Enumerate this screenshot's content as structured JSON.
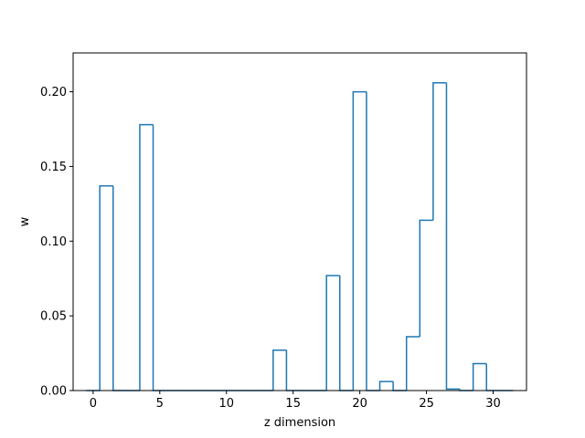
{
  "chart_data": {
    "type": "bar",
    "style": "step-outline",
    "xlabel": "z dimension",
    "ylabel": "w",
    "xlim": [
      -1.5,
      32.5
    ],
    "ylim": [
      0.0,
      0.226
    ],
    "xticks": [
      0,
      5,
      10,
      15,
      20,
      25,
      30
    ],
    "xtick_labels": [
      "0",
      "5",
      "10",
      "15",
      "20",
      "25",
      "30"
    ],
    "yticks": [
      0.0,
      0.05,
      0.1,
      0.15,
      0.2
    ],
    "ytick_labels": [
      "0.00",
      "0.05",
      "0.10",
      "0.15",
      "0.20"
    ],
    "grid": false,
    "legend": "none",
    "line_color": "#1f77b4",
    "x": [
      0,
      1,
      2,
      3,
      4,
      5,
      6,
      7,
      8,
      9,
      10,
      11,
      12,
      13,
      14,
      15,
      16,
      17,
      18,
      19,
      20,
      21,
      22,
      23,
      24,
      25,
      26,
      27,
      28,
      29,
      30,
      31
    ],
    "values": [
      0.0,
      0.137,
      0.0,
      0.0,
      0.178,
      0.0,
      0.0,
      0.0,
      0.0,
      0.0,
      0.0,
      0.0,
      0.0,
      0.0,
      0.027,
      0.0,
      0.0,
      0.0,
      0.077,
      0.0,
      0.2,
      0.0,
      0.006,
      0.0,
      0.036,
      0.114,
      0.206,
      0.001,
      0.0,
      0.018,
      0.0,
      0.0
    ]
  }
}
